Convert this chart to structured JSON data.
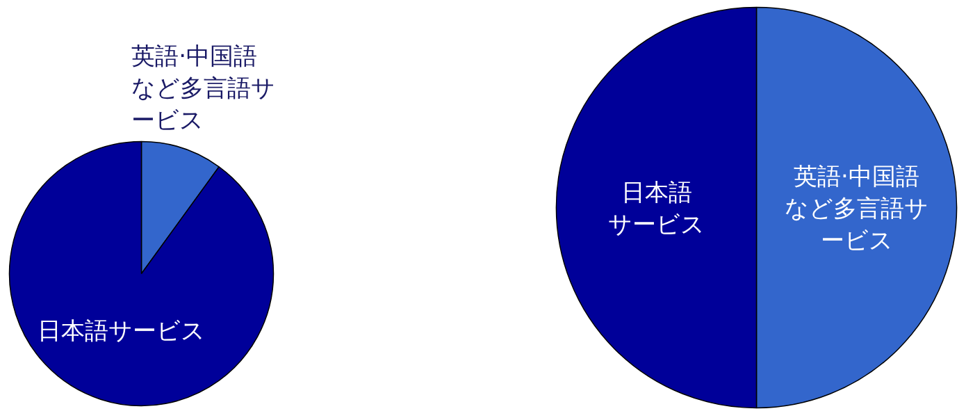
{
  "chart_data": [
    {
      "type": "pie",
      "categories": [
        "英語·中国語など多言語サービス",
        "日本語サービス"
      ],
      "values": [
        10,
        90
      ],
      "colors": [
        "#3366cc",
        "#000099"
      ]
    },
    {
      "type": "pie",
      "categories": [
        "英語·中国語など多言語サービス",
        "日本語サービス"
      ],
      "values": [
        50,
        50
      ],
      "colors": [
        "#3366cc",
        "#000099"
      ]
    }
  ]
}
